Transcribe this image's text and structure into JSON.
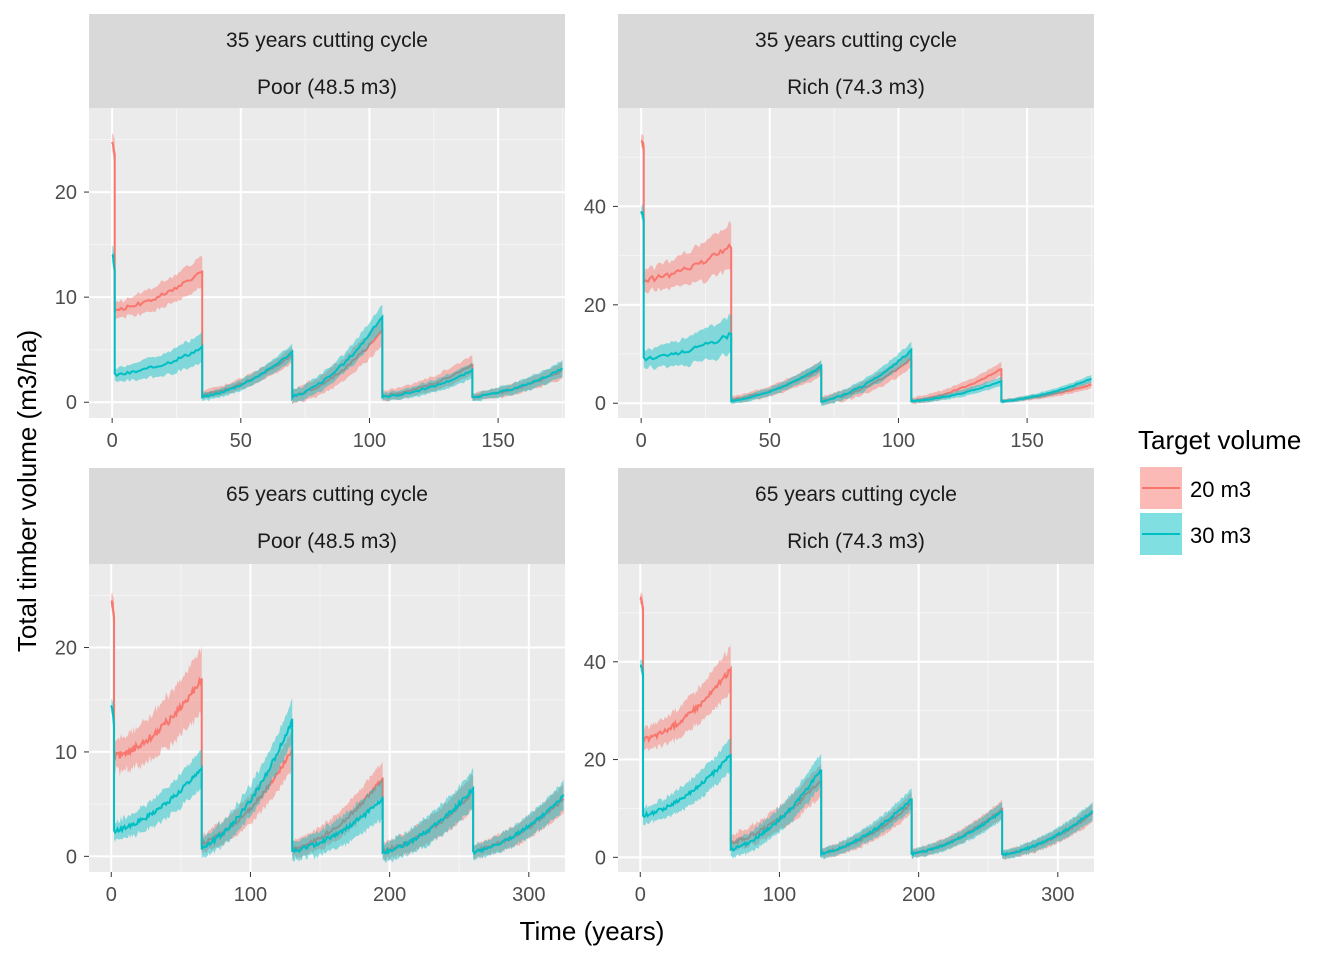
{
  "chart_data": {
    "type": "line",
    "xlabel": "Time (years)",
    "ylabel": "Total timber volume (m3/ha)",
    "legend": {
      "title": "Target volume",
      "position": "right",
      "entries": [
        {
          "label": "20 m3",
          "color": "#F8766D"
        },
        {
          "label": "30 m3",
          "color": "#00BFC4"
        }
      ]
    },
    "grid": true,
    "panels": [
      {
        "id": "p35-poor",
        "strip": [
          "35 years cutting cycle",
          "Poor (48.5 m3)"
        ],
        "xlim": [
          -9,
          176
        ],
        "ylim": [
          -1.5,
          28
        ],
        "xticks": [
          0,
          50,
          100,
          150
        ],
        "yticks": [
          0,
          10,
          20
        ],
        "series": [
          {
            "name": "20 m3",
            "color": "#F8766D",
            "segments": [
              {
                "x": [
                  0,
                  1
                ],
                "y": [
                  24.8,
                  23.5
                ],
                "band": 1.0
              },
              {
                "x": [
                  1,
                  35
                ],
                "y": [
                  8.8,
                  12.5
                ],
                "band": 1.0
              },
              {
                "x": [
                  35,
                  70
                ],
                "y": [
                  0.7,
                  4.5
                ],
                "band": 0.5
              },
              {
                "x": [
                  70,
                  105
                ],
                "y": [
                  0.6,
                  6.8
                ],
                "band": 0.9
              },
              {
                "x": [
                  105,
                  140
                ],
                "y": [
                  0.6,
                  3.5
                ],
                "band": 0.6
              },
              {
                "x": [
                  140,
                  175
                ],
                "y": [
                  0.5,
                  3.0
                ],
                "band": 0.5
              }
            ]
          },
          {
            "name": "30 m3",
            "color": "#00BFC4",
            "segments": [
              {
                "x": [
                  0,
                  1
                ],
                "y": [
                  14.0,
                  12.5
                ],
                "band": 1.0
              },
              {
                "x": [
                  1,
                  35
                ],
                "y": [
                  2.6,
                  5.2
                ],
                "band": 0.9
              },
              {
                "x": [
                  35,
                  70
                ],
                "y": [
                  0.5,
                  4.8
                ],
                "band": 0.5
              },
              {
                "x": [
                  70,
                  105
                ],
                "y": [
                  0.5,
                  8.2
                ],
                "band": 0.8
              },
              {
                "x": [
                  105,
                  140
                ],
                "y": [
                  0.5,
                  3.0
                ],
                "band": 0.5
              },
              {
                "x": [
                  140,
                  175
                ],
                "y": [
                  0.5,
                  3.2
                ],
                "band": 0.5
              }
            ]
          }
        ]
      },
      {
        "id": "p35-rich",
        "strip": [
          "35 years cutting cycle",
          "Rich (74.3 m3)"
        ],
        "xlim": [
          -9,
          176
        ],
        "ylim": [
          -3,
          60
        ],
        "xticks": [
          0,
          50,
          100,
          150
        ],
        "yticks": [
          0,
          20,
          40
        ],
        "series": [
          {
            "name": "20 m3",
            "color": "#F8766D",
            "segments": [
              {
                "x": [
                  0,
                  1
                ],
                "y": [
                  53.5,
                  52.0
                ],
                "band": 1.5
              },
              {
                "x": [
                  1,
                  35
                ],
                "y": [
                  25.0,
                  32.0
                ],
                "band": 3.0
              },
              {
                "x": [
                  35,
                  70
                ],
                "y": [
                  0.8,
                  7.0
                ],
                "band": 1.0
              },
              {
                "x": [
                  70,
                  105
                ],
                "y": [
                  0.5,
                  9.0
                ],
                "band": 1.2
              },
              {
                "x": [
                  105,
                  140
                ],
                "y": [
                  0.5,
                  7.0
                ],
                "band": 0.9
              },
              {
                "x": [
                  140,
                  175
                ],
                "y": [
                  0.5,
                  3.8
                ],
                "band": 0.5
              }
            ]
          },
          {
            "name": "30 m3",
            "color": "#00BFC4",
            "segments": [
              {
                "x": [
                  0,
                  1
                ],
                "y": [
                  39.0,
                  37.5
                ],
                "band": 1.5
              },
              {
                "x": [
                  1,
                  35
                ],
                "y": [
                  9.0,
                  14.0
                ],
                "band": 2.5
              },
              {
                "x": [
                  35,
                  70
                ],
                "y": [
                  0.5,
                  7.5
                ],
                "band": 0.8
              },
              {
                "x": [
                  70,
                  105
                ],
                "y": [
                  0.4,
                  10.8
                ],
                "band": 1.1
              },
              {
                "x": [
                  105,
                  140
                ],
                "y": [
                  0.4,
                  4.5
                ],
                "band": 0.6
              },
              {
                "x": [
                  140,
                  175
                ],
                "y": [
                  0.4,
                  5.0
                ],
                "band": 0.5
              }
            ]
          }
        ]
      },
      {
        "id": "p65-poor",
        "strip": [
          "65 years cutting cycle",
          "Poor (48.5 m3)"
        ],
        "xlim": [
          -16,
          326
        ],
        "ylim": [
          -1.5,
          28
        ],
        "xticks": [
          0,
          100,
          200,
          300
        ],
        "yticks": [
          0,
          10,
          20
        ],
        "series": [
          {
            "name": "20 m3",
            "color": "#F8766D",
            "segments": [
              {
                "x": [
                  0,
                  2
                ],
                "y": [
                  24.5,
                  23.0
                ],
                "band": 1.0
              },
              {
                "x": [
                  2,
                  65
                ],
                "y": [
                  9.5,
                  17.0
                ],
                "band": 2.0
              },
              {
                "x": [
                  65,
                  130
                ],
                "y": [
                  1.2,
                  10.2
                ],
                "band": 1.2
              },
              {
                "x": [
                  130,
                  195
                ],
                "y": [
                  0.6,
                  7.5
                ],
                "band": 1.1
              },
              {
                "x": [
                  195,
                  260
                ],
                "y": [
                  0.5,
                  6.2
                ],
                "band": 1.1
              },
              {
                "x": [
                  260,
                  325
                ],
                "y": [
                  0.5,
                  5.5
                ],
                "band": 0.9
              }
            ]
          },
          {
            "name": "30 m3",
            "color": "#00BFC4",
            "segments": [
              {
                "x": [
                  0,
                  2
                ],
                "y": [
                  14.5,
                  12.5
                ],
                "band": 1.0
              },
              {
                "x": [
                  2,
                  65
                ],
                "y": [
                  2.4,
                  8.5
                ],
                "band": 1.2
              },
              {
                "x": [
                  65,
                  130
                ],
                "y": [
                  0.8,
                  13.0
                ],
                "band": 1.3
              },
              {
                "x": [
                  130,
                  195
                ],
                "y": [
                  0.5,
                  5.5
                ],
                "band": 1.2
              },
              {
                "x": [
                  195,
                  260
                ],
                "y": [
                  0.4,
                  6.5
                ],
                "band": 1.2
              },
              {
                "x": [
                  260,
                  325
                ],
                "y": [
                  0.4,
                  5.8
                ],
                "band": 0.9
              }
            ]
          }
        ]
      },
      {
        "id": "p65-rich",
        "strip": [
          "65 years cutting cycle",
          "Rich (74.3 m3)"
        ],
        "xlim": [
          -16,
          326
        ],
        "ylim": [
          -3,
          60
        ],
        "xticks": [
          0,
          100,
          200,
          300
        ],
        "yticks": [
          0,
          20,
          40
        ],
        "series": [
          {
            "name": "20 m3",
            "color": "#F8766D",
            "segments": [
              {
                "x": [
                  0,
                  2
                ],
                "y": [
                  53.0,
                  51.0
                ],
                "band": 1.5
              },
              {
                "x": [
                  2,
                  65
                ],
                "y": [
                  24.0,
                  38.5
                ],
                "band": 3.0
              },
              {
                "x": [
                  65,
                  130
                ],
                "y": [
                  3.0,
                  16.0
                ],
                "band": 2.2
              },
              {
                "x": [
                  130,
                  195
                ],
                "y": [
                  0.8,
                  11.0
                ],
                "band": 1.4
              },
              {
                "x": [
                  195,
                  260
                ],
                "y": [
                  0.7,
                  10.0
                ],
                "band": 1.2
              },
              {
                "x": [
                  260,
                  325
                ],
                "y": [
                  0.5,
                  9.0
                ],
                "band": 1.2
              }
            ]
          },
          {
            "name": "30 m3",
            "color": "#00BFC4",
            "segments": [
              {
                "x": [
                  0,
                  2
                ],
                "y": [
                  39.5,
                  37.5
                ],
                "band": 1.5
              },
              {
                "x": [
                  2,
                  65
                ],
                "y": [
                  8.5,
                  21.0
                ],
                "band": 2.2
              },
              {
                "x": [
                  65,
                  130
                ],
                "y": [
                  1.5,
                  18.0
                ],
                "band": 2.2
              },
              {
                "x": [
                  130,
                  195
                ],
                "y": [
                  0.8,
                  12.0
                ],
                "band": 1.4
              },
              {
                "x": [
                  195,
                  260
                ],
                "y": [
                  0.7,
                  9.5
                ],
                "band": 1.2
              },
              {
                "x": [
                  260,
                  325
                ],
                "y": [
                  0.5,
                  9.5
                ],
                "band": 1.2
              }
            ]
          }
        ]
      }
    ]
  }
}
